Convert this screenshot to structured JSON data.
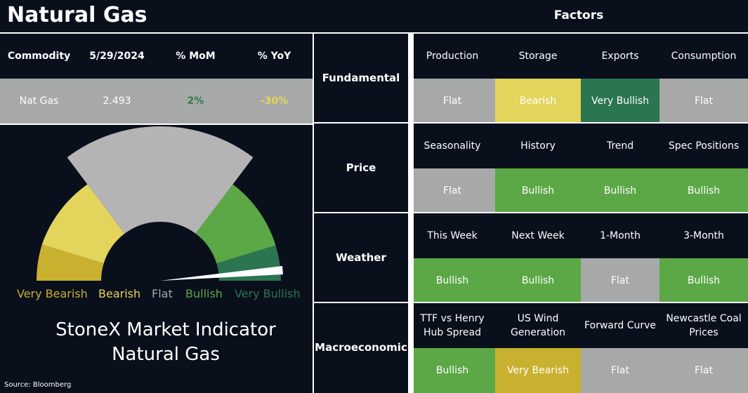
{
  "title": "Natural Gas",
  "table": {
    "header": [
      "Commodity",
      "5/29/2024",
      "% MoM",
      "% YoY"
    ],
    "row": [
      "Nat Gas",
      "2.493",
      "2%",
      "-30%"
    ],
    "row_colors": [
      "#ffffff",
      "#ffffff",
      "#2e7d4f",
      "#e6d45a"
    ]
  },
  "gauge": {
    "labels": [
      {
        "text": "Very Bearish",
        "color": "#c9b12f"
      },
      {
        "text": "Bearish",
        "color": "#e3d45c"
      },
      {
        "text": "Flat",
        "color": "#a7a9a8"
      },
      {
        "text": "Bullish",
        "color": "#5ca746"
      },
      {
        "text": "Very Bullish",
        "color": "#2b7550"
      }
    ],
    "title": [
      "StoneX Market Indicator",
      "Natural Gas"
    ]
  },
  "source": "Source: Bloomberg",
  "factors": {
    "title": "Factors",
    "groups": [
      {
        "name": "Fundamental",
        "items": [
          {
            "name": "Production",
            "rating": "Flat"
          },
          {
            "name": "Storage",
            "rating": "Bearish"
          },
          {
            "name": "Exports",
            "rating": "Very Bullish"
          },
          {
            "name": "Consumption",
            "rating": "Flat"
          }
        ]
      },
      {
        "name": "Price",
        "items": [
          {
            "name": "Seasonality",
            "rating": "Flat"
          },
          {
            "name": "History",
            "rating": "Bullish"
          },
          {
            "name": "Trend",
            "rating": "Bullish"
          },
          {
            "name": "Spec Positions",
            "rating": "Bullish"
          }
        ]
      },
      {
        "name": "Weather",
        "items": [
          {
            "name": "This Week",
            "rating": "Bullish"
          },
          {
            "name": "Next Week",
            "rating": "Bullish"
          },
          {
            "name": "1-Month",
            "rating": "Flat"
          },
          {
            "name": "3-Month",
            "rating": "Bullish"
          }
        ]
      },
      {
        "name": "Macroeconomic",
        "items": [
          {
            "name": "TTF vs Henry Hub Spread",
            "rating": "Bullish"
          },
          {
            "name": "US Wind Generation",
            "rating": "Very Bearish"
          },
          {
            "name": "Forward Curve",
            "rating": "Flat"
          },
          {
            "name": "Newcastle Coal Prices",
            "rating": "Flat"
          }
        ]
      }
    ]
  }
}
